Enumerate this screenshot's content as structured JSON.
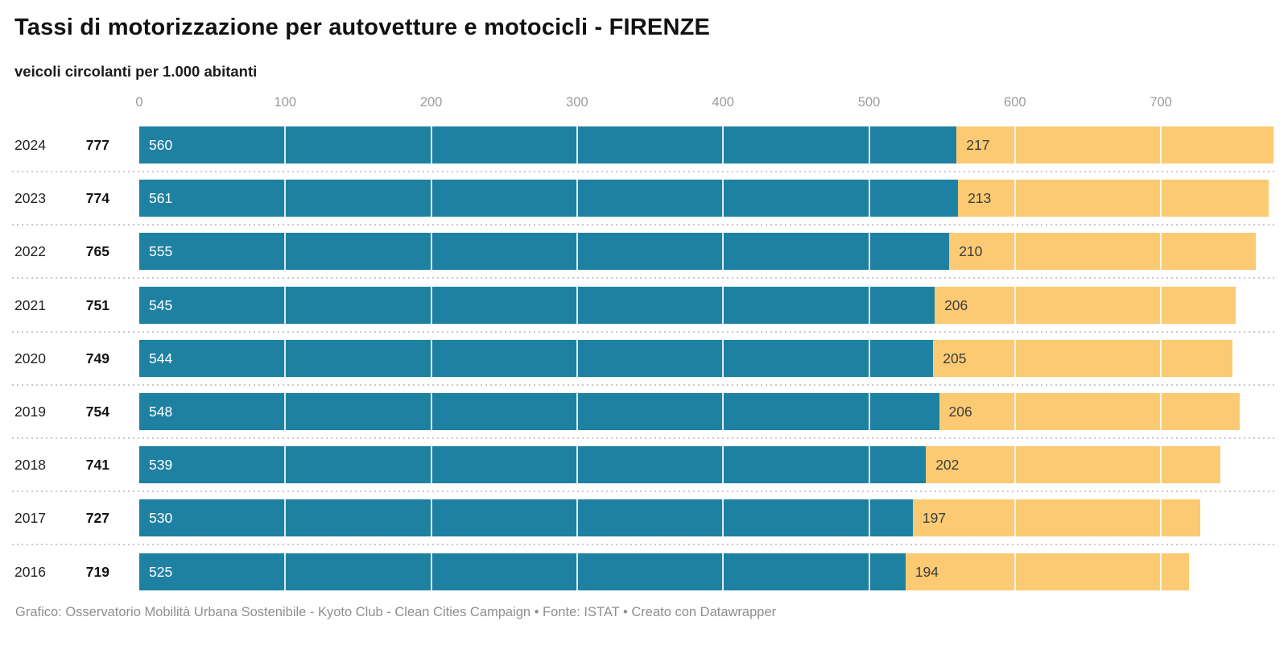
{
  "header": {
    "title": "Tassi di motorizzazione per autovetture e motocicli - FIRENZE",
    "subtitle": "veicoli circolanti per 1.000 abitanti"
  },
  "footer": {
    "text": "Grafico: Osservatorio Mobilità Urbana Sostenibile - Kyoto Club - Clean Cities Campaign • Fonte: ISTAT • Creato con Datawrapper"
  },
  "chart_data": {
    "type": "bar",
    "orientation": "horizontal",
    "stacked": true,
    "title": "Tassi di motorizzazione per autovetture e motocicli - FIRENZE",
    "subtitle": "veicoli circolanti per 1.000 abitanti",
    "categories": [
      "2024",
      "2023",
      "2022",
      "2021",
      "2020",
      "2019",
      "2018",
      "2017",
      "2016"
    ],
    "totals": [
      777,
      774,
      765,
      751,
      749,
      754,
      741,
      727,
      719
    ],
    "series": [
      {
        "name": "autovetture",
        "color": "#1f81a1",
        "label_color": "#ffffff",
        "values": [
          560,
          561,
          555,
          545,
          544,
          548,
          539,
          530,
          525
        ]
      },
      {
        "name": "motocicli",
        "color": "#fcca72",
        "label_color": "#3d3d3d",
        "values": [
          217,
          213,
          210,
          206,
          205,
          206,
          202,
          197,
          194
        ]
      }
    ],
    "x_ticks": [
      "0",
      "100",
      "200",
      "300",
      "400",
      "500",
      "600",
      "700"
    ],
    "xlim": [
      0,
      777
    ],
    "grid": "white-vertical-lines-on-bars",
    "legend": "none",
    "row_separator": "dotted"
  }
}
